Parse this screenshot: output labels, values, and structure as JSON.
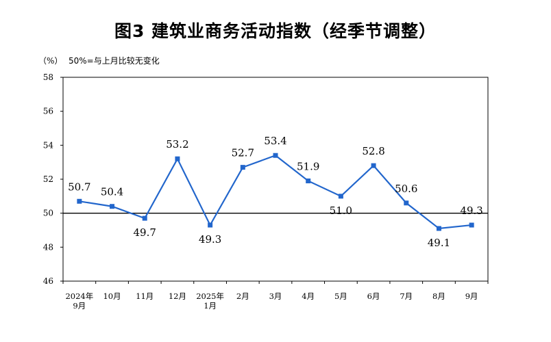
{
  "title": "图3 建筑业商务活动指数（经季节调整）",
  "unit": "（%）",
  "note": "50%=与上月比较无变化",
  "colors": {
    "line": "#2266cc",
    "marker": "#2266cc",
    "baseline": "#000000",
    "axis": "#000000"
  },
  "chart_data": {
    "type": "line",
    "title": "图3 建筑业商务活动指数（经季节调整）",
    "xlabel": "",
    "ylabel": "（%）",
    "ylim": [
      46,
      58
    ],
    "yticks": [
      46,
      48,
      50,
      52,
      54,
      56,
      58
    ],
    "reference_line": 50,
    "grid": false,
    "categories": [
      [
        "2024年",
        "9月"
      ],
      [
        "10月"
      ],
      [
        "11月"
      ],
      [
        "12月"
      ],
      [
        "2025年",
        "1月"
      ],
      [
        "2月"
      ],
      [
        "3月"
      ],
      [
        "4月"
      ],
      [
        "5月"
      ],
      [
        "6月"
      ],
      [
        "7月"
      ],
      [
        "8月"
      ],
      [
        "9月"
      ]
    ],
    "series": [
      {
        "values": [
          50.7,
          50.4,
          49.7,
          53.2,
          49.3,
          52.7,
          53.4,
          51.9,
          51.0,
          52.8,
          50.6,
          49.1,
          49.3
        ],
        "labels": [
          "50.7",
          "50.4",
          "49.7",
          "53.2",
          "49.3",
          "52.7",
          "53.4",
          "51.9",
          "51.0",
          "52.8",
          "50.6",
          "49.1",
          "49.3"
        ]
      }
    ]
  }
}
